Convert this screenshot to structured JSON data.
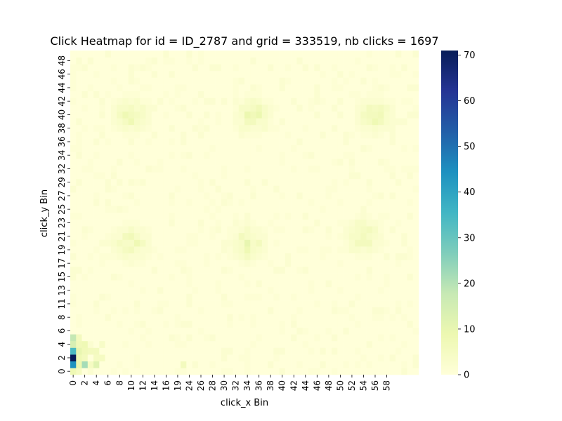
{
  "chart_data": {
    "type": "heatmap",
    "title": "Click Heatmap for id = ID_2787 and grid = 333519, nb clicks = 1697",
    "xlabel": "click_x Bin",
    "ylabel": "click_y Bin",
    "x_tick_labels": [
      "0",
      "2",
      "4",
      "6",
      "8",
      "10",
      "12",
      "14",
      "16",
      "19",
      "24",
      "26",
      "28",
      "30",
      "32",
      "34",
      "36",
      "38",
      "40",
      "42",
      "44",
      "46",
      "48",
      "50",
      "52",
      "54",
      "56",
      "58"
    ],
    "y_tick_labels": [
      "0",
      "2",
      "4",
      "6",
      "8",
      "11",
      "13",
      "15",
      "17",
      "19",
      "21",
      "23",
      "25",
      "27",
      "29",
      "32",
      "34",
      "36",
      "38",
      "40",
      "42",
      "44",
      "46",
      "48"
    ],
    "n_cols": 60,
    "n_rows": 48,
    "colorbar": {
      "min": 0,
      "max": 71,
      "ticks": [
        0,
        10,
        20,
        30,
        40,
        50,
        60,
        70
      ],
      "colormap": "YlGnBu"
    },
    "hotspots": [
      {
        "col": 0,
        "row": 0,
        "value": 8
      },
      {
        "col": 0,
        "row": 1,
        "value": 44
      },
      {
        "col": 0,
        "row": 2,
        "value": 71
      },
      {
        "col": 0,
        "row": 3,
        "value": 34
      },
      {
        "col": 0,
        "row": 4,
        "value": 14
      },
      {
        "col": 0,
        "row": 5,
        "value": 18
      },
      {
        "col": 1,
        "row": 0,
        "value": 5
      },
      {
        "col": 1,
        "row": 1,
        "value": 9
      },
      {
        "col": 1,
        "row": 2,
        "value": 8
      },
      {
        "col": 1,
        "row": 3,
        "value": 10
      },
      {
        "col": 1,
        "row": 4,
        "value": 7
      },
      {
        "col": 1,
        "row": 5,
        "value": 6
      },
      {
        "col": 2,
        "row": 1,
        "value": 22
      },
      {
        "col": 2,
        "row": 2,
        "value": 6
      },
      {
        "col": 2,
        "row": 3,
        "value": 7
      },
      {
        "col": 2,
        "row": 4,
        "value": 8
      },
      {
        "col": 3,
        "row": 1,
        "value": 5
      },
      {
        "col": 3,
        "row": 3,
        "value": 6
      },
      {
        "col": 4,
        "row": 1,
        "value": 12
      },
      {
        "col": 4,
        "row": 2,
        "value": 5
      },
      {
        "col": 4,
        "row": 3,
        "value": 6
      },
      {
        "col": 5,
        "row": 2,
        "value": 5
      },
      {
        "col": 5,
        "row": 4,
        "value": 4
      },
      {
        "col": 19,
        "row": 1,
        "value": 6
      }
    ],
    "clusters": [
      {
        "col": 10,
        "row": 38,
        "peak": 8
      },
      {
        "col": 31,
        "row": 38,
        "peak": 9
      },
      {
        "col": 52,
        "row": 38,
        "peak": 8
      },
      {
        "col": 10,
        "row": 19,
        "peak": 8
      },
      {
        "col": 30,
        "row": 19,
        "peak": 9
      },
      {
        "col": 50,
        "row": 20,
        "peak": 8
      }
    ]
  }
}
